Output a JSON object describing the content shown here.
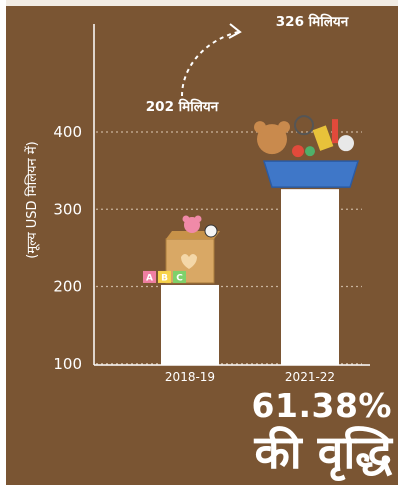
{
  "chart_data": {
    "type": "bar",
    "categories": [
      "2018-19",
      "2021-22"
    ],
    "values": [
      202,
      326
    ],
    "value_labels": [
      "202 मिलियन",
      "326 मिलियन"
    ],
    "ylabel": "(मूल्य USD मिलियन में)",
    "yticks": [
      100,
      200,
      300,
      400
    ],
    "ylim": [
      0,
      400
    ],
    "grid": true,
    "colors": {
      "background": "#7a5533",
      "bar": "#ffffff",
      "gridline": "#c9b49d",
      "axis": "#ffffff"
    }
  },
  "annotation": {
    "growth_percent": "61.38%",
    "growth_text": "की वृद्धि"
  }
}
